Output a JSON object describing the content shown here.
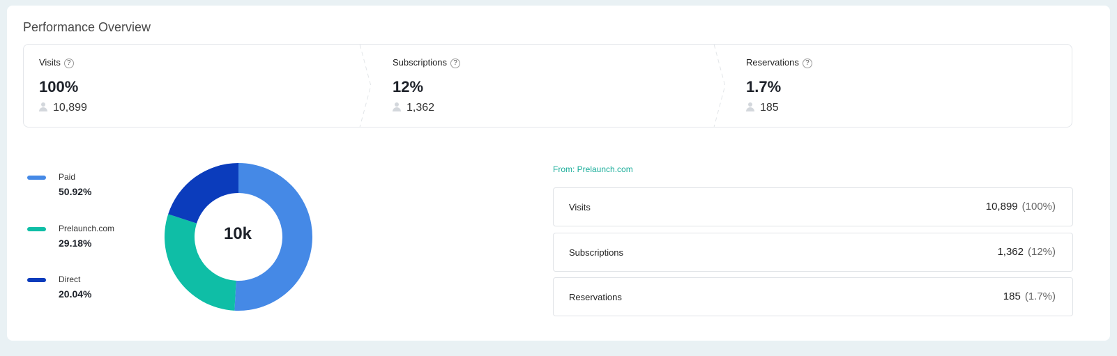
{
  "title": "Performance Overview",
  "stats": [
    {
      "label": "Visits",
      "percent": "100%",
      "count": "10,899"
    },
    {
      "label": "Subscriptions",
      "percent": "12%",
      "count": "1,362"
    },
    {
      "label": "Reservations",
      "percent": "1.7%",
      "count": "185"
    }
  ],
  "chart_data": {
    "type": "pie",
    "variant": "donut",
    "center_label": "10k",
    "categories": [
      "Paid",
      "Prelaunch.com",
      "Direct"
    ],
    "values": [
      50.92,
      29.18,
      20.04
    ],
    "value_labels": [
      "50.92%",
      "29.18%",
      "20.04%"
    ],
    "colors": [
      "#4589e6",
      "#0fbea6",
      "#0b3cbc"
    ],
    "legend": "left"
  },
  "breakdown": {
    "from": "From: Prelaunch.com",
    "rows": [
      {
        "label": "Visits",
        "value": "10,899",
        "percent": "(100%)"
      },
      {
        "label": "Subscriptions",
        "value": "1,362",
        "percent": "(12%)"
      },
      {
        "label": "Reservations",
        "value": "185",
        "percent": "(1.7%)"
      }
    ]
  }
}
